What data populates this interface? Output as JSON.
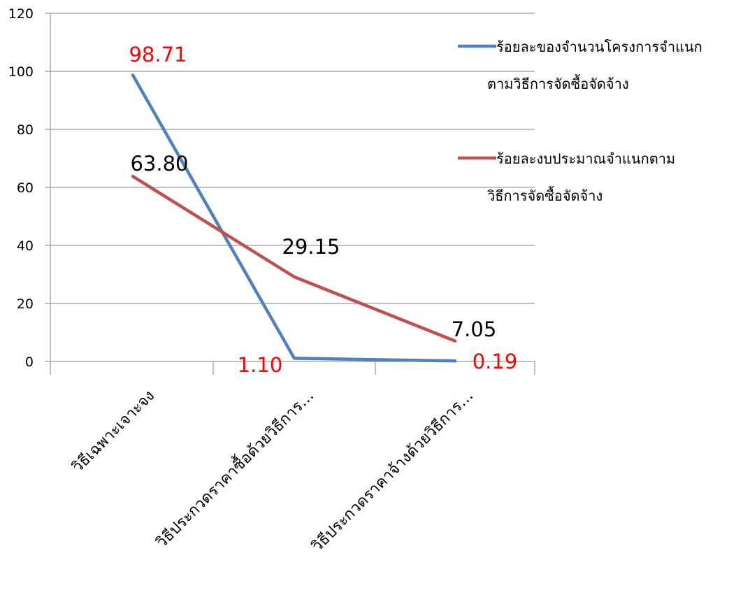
{
  "chart_data": {
    "type": "line",
    "categories": [
      "วิธีเฉพาะเจาะจง",
      "วิธีประกวดราคาซื้อด้วยวิธีการ…",
      "วิธีประกวดราคาจ้างด้วยวิธีการ…"
    ],
    "series": [
      {
        "name": "ร้อยละของจำนวนโครงการจำแนกตามวิธีการจัดซื้อจัดจ้าง",
        "legend_lines": [
          "ร้อยละของจำนวนโครงการจำแนก",
          "ตามวิธีการจัดซื้อจัดจ้าง"
        ],
        "values": [
          98.71,
          1.1,
          0.19
        ],
        "labels": [
          "98.71",
          "1.10",
          "0.19"
        ],
        "color": "#4f81bd",
        "label_color": "#ff0000"
      },
      {
        "name": "ร้อยละงบประมาณจำแนกตามวิธีการจัดซื้อจัดจ้าง",
        "legend_lines": [
          "ร้อยละงบประมาณจำแนกตาม",
          "วิธีการจัดซื้อจัดจ้าง"
        ],
        "values": [
          63.8,
          29.15,
          7.05
        ],
        "labels": [
          "63.80",
          "29.15",
          "7.05"
        ],
        "color": "#c0504d",
        "label_color": "#000000"
      }
    ],
    "ylim": [
      0,
      120
    ],
    "yticks": [
      "0",
      "20",
      "40",
      "60",
      "80",
      "100",
      "120"
    ],
    "grid": true,
    "legend_position": "right",
    "title": "",
    "xlabel": "",
    "ylabel": ""
  }
}
